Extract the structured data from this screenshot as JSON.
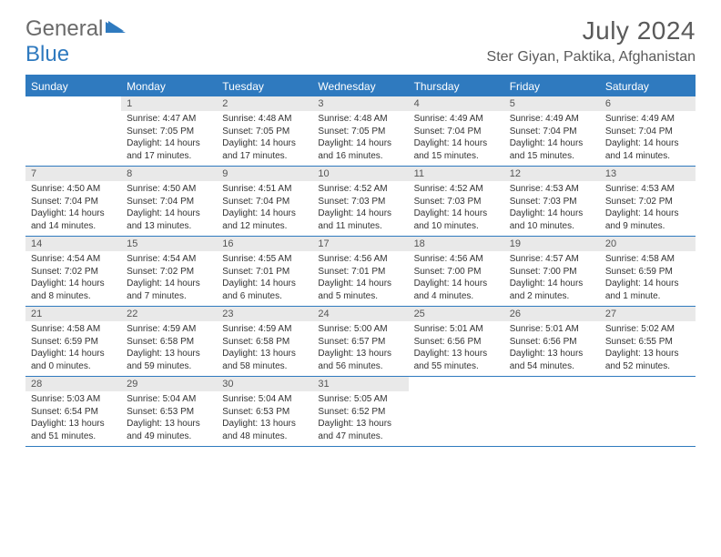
{
  "logo": {
    "text1": "General",
    "text2": "Blue"
  },
  "header": {
    "month": "July 2024",
    "location": "Ster Giyan, Paktika, Afghanistan"
  },
  "colors": {
    "accent": "#2f7abf",
    "header_band": "#e9e9e9",
    "text": "#333333",
    "muted": "#6a6a6a"
  },
  "dow": [
    "Sunday",
    "Monday",
    "Tuesday",
    "Wednesday",
    "Thursday",
    "Friday",
    "Saturday"
  ],
  "weeks": [
    [
      {
        "n": "",
        "sr": "",
        "ss": "",
        "dl": ""
      },
      {
        "n": "1",
        "sr": "Sunrise: 4:47 AM",
        "ss": "Sunset: 7:05 PM",
        "dl": "Daylight: 14 hours and 17 minutes."
      },
      {
        "n": "2",
        "sr": "Sunrise: 4:48 AM",
        "ss": "Sunset: 7:05 PM",
        "dl": "Daylight: 14 hours and 17 minutes."
      },
      {
        "n": "3",
        "sr": "Sunrise: 4:48 AM",
        "ss": "Sunset: 7:05 PM",
        "dl": "Daylight: 14 hours and 16 minutes."
      },
      {
        "n": "4",
        "sr": "Sunrise: 4:49 AM",
        "ss": "Sunset: 7:04 PM",
        "dl": "Daylight: 14 hours and 15 minutes."
      },
      {
        "n": "5",
        "sr": "Sunrise: 4:49 AM",
        "ss": "Sunset: 7:04 PM",
        "dl": "Daylight: 14 hours and 15 minutes."
      },
      {
        "n": "6",
        "sr": "Sunrise: 4:49 AM",
        "ss": "Sunset: 7:04 PM",
        "dl": "Daylight: 14 hours and 14 minutes."
      }
    ],
    [
      {
        "n": "7",
        "sr": "Sunrise: 4:50 AM",
        "ss": "Sunset: 7:04 PM",
        "dl": "Daylight: 14 hours and 14 minutes."
      },
      {
        "n": "8",
        "sr": "Sunrise: 4:50 AM",
        "ss": "Sunset: 7:04 PM",
        "dl": "Daylight: 14 hours and 13 minutes."
      },
      {
        "n": "9",
        "sr": "Sunrise: 4:51 AM",
        "ss": "Sunset: 7:04 PM",
        "dl": "Daylight: 14 hours and 12 minutes."
      },
      {
        "n": "10",
        "sr": "Sunrise: 4:52 AM",
        "ss": "Sunset: 7:03 PM",
        "dl": "Daylight: 14 hours and 11 minutes."
      },
      {
        "n": "11",
        "sr": "Sunrise: 4:52 AM",
        "ss": "Sunset: 7:03 PM",
        "dl": "Daylight: 14 hours and 10 minutes."
      },
      {
        "n": "12",
        "sr": "Sunrise: 4:53 AM",
        "ss": "Sunset: 7:03 PM",
        "dl": "Daylight: 14 hours and 10 minutes."
      },
      {
        "n": "13",
        "sr": "Sunrise: 4:53 AM",
        "ss": "Sunset: 7:02 PM",
        "dl": "Daylight: 14 hours and 9 minutes."
      }
    ],
    [
      {
        "n": "14",
        "sr": "Sunrise: 4:54 AM",
        "ss": "Sunset: 7:02 PM",
        "dl": "Daylight: 14 hours and 8 minutes."
      },
      {
        "n": "15",
        "sr": "Sunrise: 4:54 AM",
        "ss": "Sunset: 7:02 PM",
        "dl": "Daylight: 14 hours and 7 minutes."
      },
      {
        "n": "16",
        "sr": "Sunrise: 4:55 AM",
        "ss": "Sunset: 7:01 PM",
        "dl": "Daylight: 14 hours and 6 minutes."
      },
      {
        "n": "17",
        "sr": "Sunrise: 4:56 AM",
        "ss": "Sunset: 7:01 PM",
        "dl": "Daylight: 14 hours and 5 minutes."
      },
      {
        "n": "18",
        "sr": "Sunrise: 4:56 AM",
        "ss": "Sunset: 7:00 PM",
        "dl": "Daylight: 14 hours and 4 minutes."
      },
      {
        "n": "19",
        "sr": "Sunrise: 4:57 AM",
        "ss": "Sunset: 7:00 PM",
        "dl": "Daylight: 14 hours and 2 minutes."
      },
      {
        "n": "20",
        "sr": "Sunrise: 4:58 AM",
        "ss": "Sunset: 6:59 PM",
        "dl": "Daylight: 14 hours and 1 minute."
      }
    ],
    [
      {
        "n": "21",
        "sr": "Sunrise: 4:58 AM",
        "ss": "Sunset: 6:59 PM",
        "dl": "Daylight: 14 hours and 0 minutes."
      },
      {
        "n": "22",
        "sr": "Sunrise: 4:59 AM",
        "ss": "Sunset: 6:58 PM",
        "dl": "Daylight: 13 hours and 59 minutes."
      },
      {
        "n": "23",
        "sr": "Sunrise: 4:59 AM",
        "ss": "Sunset: 6:58 PM",
        "dl": "Daylight: 13 hours and 58 minutes."
      },
      {
        "n": "24",
        "sr": "Sunrise: 5:00 AM",
        "ss": "Sunset: 6:57 PM",
        "dl": "Daylight: 13 hours and 56 minutes."
      },
      {
        "n": "25",
        "sr": "Sunrise: 5:01 AM",
        "ss": "Sunset: 6:56 PM",
        "dl": "Daylight: 13 hours and 55 minutes."
      },
      {
        "n": "26",
        "sr": "Sunrise: 5:01 AM",
        "ss": "Sunset: 6:56 PM",
        "dl": "Daylight: 13 hours and 54 minutes."
      },
      {
        "n": "27",
        "sr": "Sunrise: 5:02 AM",
        "ss": "Sunset: 6:55 PM",
        "dl": "Daylight: 13 hours and 52 minutes."
      }
    ],
    [
      {
        "n": "28",
        "sr": "Sunrise: 5:03 AM",
        "ss": "Sunset: 6:54 PM",
        "dl": "Daylight: 13 hours and 51 minutes."
      },
      {
        "n": "29",
        "sr": "Sunrise: 5:04 AM",
        "ss": "Sunset: 6:53 PM",
        "dl": "Daylight: 13 hours and 49 minutes."
      },
      {
        "n": "30",
        "sr": "Sunrise: 5:04 AM",
        "ss": "Sunset: 6:53 PM",
        "dl": "Daylight: 13 hours and 48 minutes."
      },
      {
        "n": "31",
        "sr": "Sunrise: 5:05 AM",
        "ss": "Sunset: 6:52 PM",
        "dl": "Daylight: 13 hours and 47 minutes."
      },
      {
        "n": "",
        "sr": "",
        "ss": "",
        "dl": ""
      },
      {
        "n": "",
        "sr": "",
        "ss": "",
        "dl": ""
      },
      {
        "n": "",
        "sr": "",
        "ss": "",
        "dl": ""
      }
    ]
  ]
}
